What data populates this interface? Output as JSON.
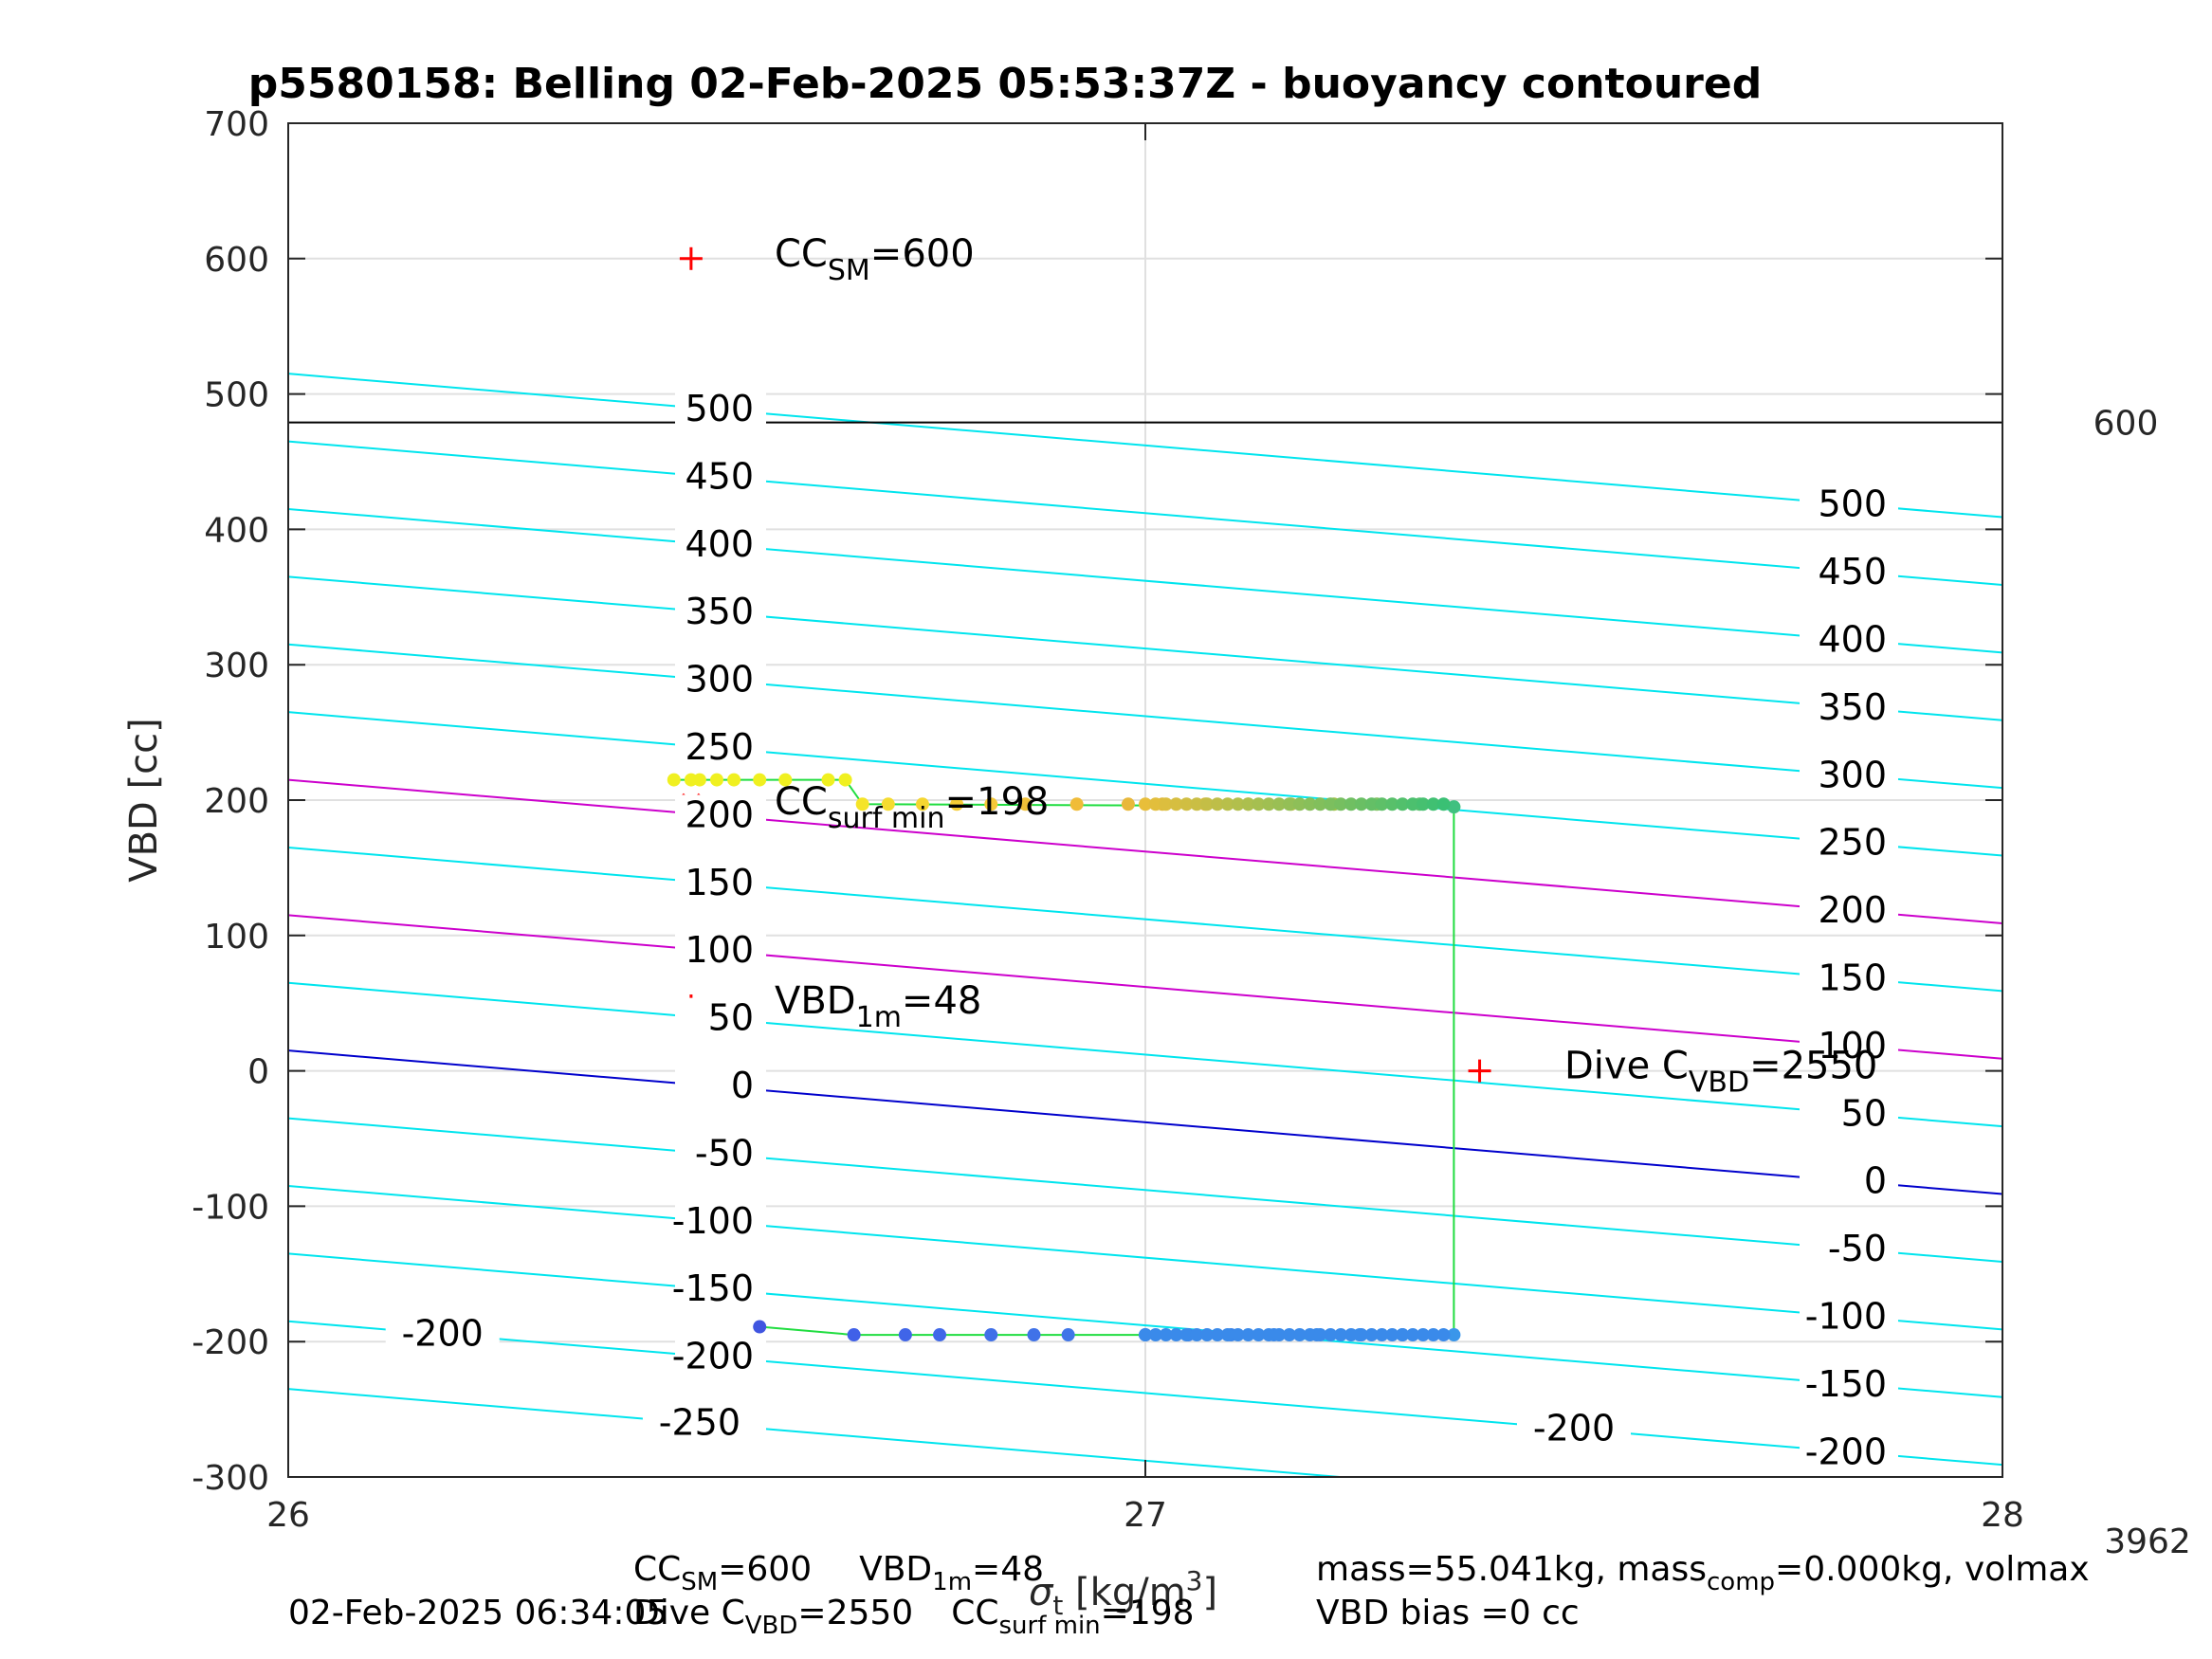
{
  "chart_data": {
    "type": "scatter",
    "title": "p5580158: Belling 02-Feb-2025 05:53:37Z - buoyancy contoured",
    "xlabel": "σ_t [kg/m³]",
    "ylabel": "VBD [cc]",
    "xlim": [
      26,
      28
    ],
    "ylim": [
      -300,
      700
    ],
    "x_ticks": [
      "26",
      "27",
      "28"
    ],
    "y_ticks": [
      "700",
      "600",
      "500",
      "400",
      "300",
      "200",
      "100",
      "0",
      "-100",
      "-200",
      "-300"
    ],
    "grid": true,
    "reference_line": {
      "y": 479,
      "label": "600"
    },
    "corner_label": "3962",
    "contours": {
      "values": [
        -250,
        -200,
        -150,
        -100,
        -50,
        0,
        50,
        100,
        150,
        200,
        250,
        300,
        350,
        400,
        450,
        500
      ],
      "left_labels": [
        "500",
        "450",
        "400",
        "350",
        "300",
        "250",
        "200",
        "150",
        "100",
        "50",
        "0",
        "-50",
        "-100",
        "-150",
        "-200",
        "-250"
      ],
      "right_labels": [
        "500",
        "450",
        "400",
        "350",
        "300",
        "250",
        "200",
        "150",
        "100",
        "50",
        "0",
        "-50",
        "-100",
        "-150",
        "-200"
      ],
      "colors": {
        "default": "#00e5ee",
        "zero": "#0000cc",
        "highlight": "#cc00cc"
      }
    },
    "series": [
      {
        "type": "points",
        "x": [
          26.45,
          26.47,
          26.48,
          26.5,
          26.52,
          26.55,
          26.58,
          26.63,
          26.65
        ],
        "y": [
          215,
          215,
          215,
          215,
          215,
          215,
          215,
          215,
          215
        ],
        "color": "#f0f020"
      },
      {
        "type": "points",
        "x": [
          26.47
        ],
        "y": [
          228
        ],
        "color": "#f0f020"
      },
      {
        "type": "points",
        "x": [
          26.67,
          26.7,
          26.74,
          26.78,
          26.82,
          26.86,
          26.92,
          26.98,
          27.02,
          27.07,
          27.12,
          27.17,
          27.22,
          27.27,
          27.32,
          27.36
        ],
        "y": [
          197,
          197,
          197,
          197,
          197,
          197,
          197,
          197,
          197,
          197,
          197,
          197,
          197,
          197,
          197,
          195
        ],
        "colors": [
          "#f5e428",
          "#f5dc30",
          "#f5d630",
          "#f5cc35",
          "#f5c838",
          "#f0c038",
          "#f0bc38",
          "#e8b83a",
          "#e0b83a",
          "#d8b83a",
          "#ccb840",
          "#b8bc44",
          "#a0c048",
          "#80c060",
          "#5cc070",
          "#40c080"
        ]
      },
      {
        "type": "points",
        "x": [
          26.55,
          26.66,
          26.72,
          26.76,
          26.82,
          26.87,
          26.91,
          27.0,
          27.05,
          27.1,
          27.15,
          27.2,
          27.25,
          27.3,
          27.36
        ],
        "y": [
          -189,
          -195,
          -195,
          -195,
          -195,
          -195,
          -195,
          -195,
          -195,
          -195,
          -195,
          -195,
          -195,
          -195,
          -195
        ],
        "colors": [
          "#4055e0",
          "#4060e8",
          "#4065e8",
          "#4068e8",
          "#4070e8",
          "#4072e8",
          "#4075e8",
          "#3a78ea",
          "#3a80ea",
          "#3a85ea",
          "#3a88ea",
          "#3a8aea",
          "#3a8eea",
          "#3a92ea",
          "#3a96ea"
        ]
      }
    ],
    "trajectory_color": "#20dd40",
    "markers": [
      {
        "x": 26.47,
        "y": 600,
        "symbol": "+",
        "color": "#ff0000"
      },
      {
        "x": 26.47,
        "y": 198,
        "symbol": "x",
        "color": "#ff0000"
      },
      {
        "x": 26.47,
        "y": 48,
        "symbol": "+",
        "color": "#ff0000"
      },
      {
        "x": 27.39,
        "y": 0,
        "symbol": "+",
        "color": "#ff0000"
      }
    ],
    "annotations": {
      "cc_sm": {
        "base": "CC",
        "sub": "SM",
        "value": "=600"
      },
      "cc_surf": {
        "base": "CC",
        "sub": "surf min",
        "value": "=198"
      },
      "vbd_1m": {
        "base": "VBD",
        "sub": "1m",
        "value": "=48"
      },
      "dive_c": {
        "base": "Dive C",
        "sub": "VBD",
        "value": "=2550"
      }
    }
  },
  "footer": {
    "timestamp": "02-Feb-2025 06:34:05",
    "line1": {
      "a_base": "CC",
      "a_sub": "SM",
      "a_val": "=600",
      "b_base": "VBD",
      "b_sub": "1m",
      "b_val": "=48"
    },
    "line2": {
      "a_base": "Dive C",
      "a_sub": "VBD",
      "a_val": "=2550",
      "b_base": "CC",
      "b_sub": "surf min",
      "b_val": "=198"
    },
    "right1": {
      "pre": "mass=55.041kg, mass",
      "sub": "comp",
      "post": "=0.000kg, volmax"
    },
    "right2": "VBD bias =0 cc"
  }
}
